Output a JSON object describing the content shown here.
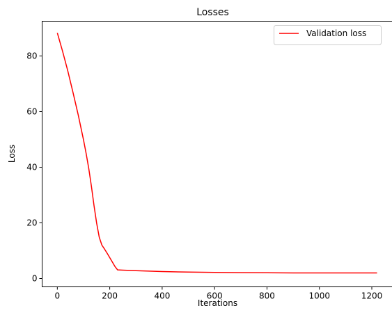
{
  "chart_data": {
    "type": "line",
    "title": "Losses",
    "xlabel": "Iterations",
    "ylabel": "Loss",
    "xlim": [
      -58,
      1281
    ],
    "ylim": [
      -3,
      92.5
    ],
    "xticks": [
      0,
      200,
      400,
      600,
      800,
      1000,
      1200
    ],
    "yticks": [
      0,
      20,
      40,
      60,
      80
    ],
    "grid": false,
    "legend_position": "top-right",
    "series": [
      {
        "name": "Validation loss",
        "color": "#ff0000",
        "x": [
          0,
          20,
          40,
          60,
          80,
          100,
          110,
          120,
          130,
          140,
          150,
          160,
          170,
          180,
          190,
          200,
          210,
          220,
          230,
          250,
          300,
          400,
          500,
          600,
          700,
          800,
          900,
          1000,
          1100,
          1220
        ],
        "y": [
          88.3,
          81.7,
          74.6,
          66.8,
          58.7,
          49.8,
          44.9,
          39.5,
          33.2,
          26.2,
          19.9,
          14.8,
          12.0,
          10.6,
          9.1,
          7.5,
          5.9,
          4.3,
          3.1,
          3.0,
          2.8,
          2.5,
          2.3,
          2.2,
          2.1,
          2.05,
          2.0,
          2.0,
          2.0,
          2.0
        ]
      }
    ]
  }
}
